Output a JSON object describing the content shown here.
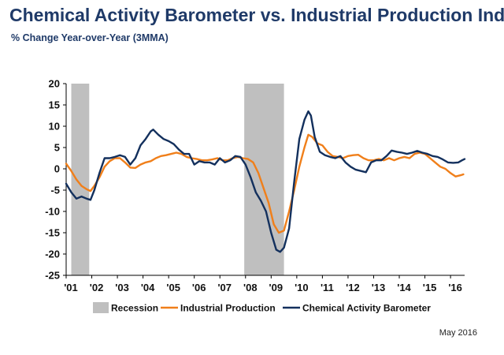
{
  "title": "Chemical Activity Barometer vs. Industrial Production Index",
  "subtitle": "% Change Year-over-Year (3MMA)",
  "footnote": "May 2016",
  "colors": {
    "recession": "#bfbfbf",
    "industrial_production": "#f07f1a",
    "cab": "#13305d"
  },
  "chart_data": {
    "type": "line",
    "title": "Chemical Activity Barometer vs. Industrial Production Index",
    "subtitle": "% Change Year-over-Year (3MMA)",
    "xlabel": "",
    "ylabel": "",
    "ylim": [
      -25,
      20
    ],
    "xlim": [
      2001.0,
      2016.55
    ],
    "yticks": [
      -25,
      -20,
      -15,
      -10,
      -5,
      0,
      5,
      10,
      15,
      20
    ],
    "xtick_labels": [
      "'01",
      "'02",
      "'03",
      "'04",
      "'05",
      "'06",
      "'07",
      "'08",
      "'09",
      "'10",
      "'11",
      "'12",
      "'13",
      "'14",
      "'15",
      "'16"
    ],
    "grid": false,
    "legend_position": "bottom",
    "legend": [
      "Recession",
      "Industrial Production",
      "Chemical Activity Barometer"
    ],
    "recessions": [
      [
        2001.2,
        2001.9
      ],
      [
        2007.95,
        2009.5
      ]
    ],
    "series": [
      {
        "name": "Industrial Production",
        "points": [
          [
            2001.0,
            1.2
          ],
          [
            2001.2,
            -0.5
          ],
          [
            2001.4,
            -2.5
          ],
          [
            2001.6,
            -4.0
          ],
          [
            2001.8,
            -4.8
          ],
          [
            2001.95,
            -5.2
          ],
          [
            2002.1,
            -4.0
          ],
          [
            2002.3,
            -2.0
          ],
          [
            2002.5,
            0.5
          ],
          [
            2002.7,
            1.8
          ],
          [
            2002.9,
            2.5
          ],
          [
            2003.1,
            2.5
          ],
          [
            2003.3,
            1.5
          ],
          [
            2003.5,
            0.3
          ],
          [
            2003.7,
            0.2
          ],
          [
            2003.9,
            1.0
          ],
          [
            2004.1,
            1.5
          ],
          [
            2004.3,
            1.8
          ],
          [
            2004.5,
            2.5
          ],
          [
            2004.7,
            3.0
          ],
          [
            2004.9,
            3.2
          ],
          [
            2005.1,
            3.5
          ],
          [
            2005.3,
            3.8
          ],
          [
            2005.5,
            3.5
          ],
          [
            2005.7,
            2.8
          ],
          [
            2005.9,
            2.5
          ],
          [
            2006.1,
            2.3
          ],
          [
            2006.3,
            2.0
          ],
          [
            2006.5,
            2.0
          ],
          [
            2006.7,
            2.2
          ],
          [
            2006.9,
            2.5
          ],
          [
            2007.1,
            2.0
          ],
          [
            2007.3,
            2.0
          ],
          [
            2007.5,
            2.5
          ],
          [
            2007.7,
            2.8
          ],
          [
            2007.9,
            2.5
          ],
          [
            2008.1,
            2.3
          ],
          [
            2008.3,
            1.5
          ],
          [
            2008.5,
            -1.0
          ],
          [
            2008.7,
            -4.5
          ],
          [
            2008.9,
            -8.0
          ],
          [
            2009.1,
            -13.0
          ],
          [
            2009.3,
            -15.0
          ],
          [
            2009.5,
            -14.5
          ],
          [
            2009.7,
            -10.0
          ],
          [
            2009.9,
            -5.0
          ],
          [
            2010.1,
            0.5
          ],
          [
            2010.3,
            5.0
          ],
          [
            2010.45,
            8.0
          ],
          [
            2010.6,
            7.5
          ],
          [
            2010.8,
            6.0
          ],
          [
            2011.0,
            5.5
          ],
          [
            2011.2,
            4.0
          ],
          [
            2011.4,
            3.0
          ],
          [
            2011.6,
            2.8
          ],
          [
            2011.8,
            2.5
          ],
          [
            2012.0,
            3.0
          ],
          [
            2012.2,
            3.2
          ],
          [
            2012.4,
            3.3
          ],
          [
            2012.6,
            2.5
          ],
          [
            2012.8,
            2.0
          ],
          [
            2013.0,
            2.0
          ],
          [
            2013.2,
            2.3
          ],
          [
            2013.4,
            2.0
          ],
          [
            2013.6,
            2.5
          ],
          [
            2013.8,
            2.0
          ],
          [
            2014.0,
            2.5
          ],
          [
            2014.2,
            2.8
          ],
          [
            2014.4,
            2.5
          ],
          [
            2014.6,
            3.5
          ],
          [
            2014.8,
            3.8
          ],
          [
            2015.0,
            3.5
          ],
          [
            2015.2,
            2.5
          ],
          [
            2015.4,
            1.5
          ],
          [
            2015.6,
            0.5
          ],
          [
            2015.8,
            0.0
          ],
          [
            2016.0,
            -1.0
          ],
          [
            2016.2,
            -1.8
          ],
          [
            2016.4,
            -1.5
          ],
          [
            2016.5,
            -1.3
          ]
        ]
      },
      {
        "name": "Chemical Activity Barometer",
        "points": [
          [
            2001.0,
            -3.5
          ],
          [
            2001.2,
            -5.5
          ],
          [
            2001.4,
            -7.0
          ],
          [
            2001.6,
            -6.5
          ],
          [
            2001.8,
            -7.0
          ],
          [
            2001.95,
            -7.3
          ],
          [
            2002.1,
            -5.0
          ],
          [
            2002.3,
            -1.0
          ],
          [
            2002.5,
            2.5
          ],
          [
            2002.7,
            2.5
          ],
          [
            2002.9,
            2.8
          ],
          [
            2003.1,
            3.2
          ],
          [
            2003.3,
            2.8
          ],
          [
            2003.5,
            1.0
          ],
          [
            2003.7,
            2.5
          ],
          [
            2003.9,
            5.5
          ],
          [
            2004.1,
            7.0
          ],
          [
            2004.3,
            8.8
          ],
          [
            2004.4,
            9.2
          ],
          [
            2004.6,
            8.0
          ],
          [
            2004.8,
            7.0
          ],
          [
            2005.0,
            6.5
          ],
          [
            2005.2,
            5.8
          ],
          [
            2005.4,
            4.5
          ],
          [
            2005.6,
            3.5
          ],
          [
            2005.8,
            3.5
          ],
          [
            2006.0,
            1.0
          ],
          [
            2006.2,
            1.8
          ],
          [
            2006.4,
            1.5
          ],
          [
            2006.6,
            1.5
          ],
          [
            2006.8,
            1.0
          ],
          [
            2007.0,
            2.5
          ],
          [
            2007.2,
            1.5
          ],
          [
            2007.4,
            2.0
          ],
          [
            2007.6,
            3.0
          ],
          [
            2007.8,
            2.8
          ],
          [
            2008.0,
            1.0
          ],
          [
            2008.2,
            -2.0
          ],
          [
            2008.4,
            -5.5
          ],
          [
            2008.6,
            -7.5
          ],
          [
            2008.8,
            -10.0
          ],
          [
            2009.0,
            -15.0
          ],
          [
            2009.2,
            -19.0
          ],
          [
            2009.35,
            -19.5
          ],
          [
            2009.5,
            -18.5
          ],
          [
            2009.7,
            -14.0
          ],
          [
            2009.9,
            -3.0
          ],
          [
            2010.1,
            7.0
          ],
          [
            2010.3,
            11.5
          ],
          [
            2010.45,
            13.5
          ],
          [
            2010.55,
            12.5
          ],
          [
            2010.7,
            7.5
          ],
          [
            2010.9,
            4.0
          ],
          [
            2011.1,
            3.2
          ],
          [
            2011.3,
            2.8
          ],
          [
            2011.5,
            2.5
          ],
          [
            2011.7,
            3.0
          ],
          [
            2011.9,
            1.5
          ],
          [
            2012.1,
            0.5
          ],
          [
            2012.3,
            -0.2
          ],
          [
            2012.5,
            -0.5
          ],
          [
            2012.7,
            -0.8
          ],
          [
            2012.9,
            1.5
          ],
          [
            2013.1,
            2.0
          ],
          [
            2013.3,
            2.0
          ],
          [
            2013.5,
            3.0
          ],
          [
            2013.7,
            4.3
          ],
          [
            2013.9,
            4.0
          ],
          [
            2014.1,
            3.8
          ],
          [
            2014.3,
            3.5
          ],
          [
            2014.5,
            3.8
          ],
          [
            2014.7,
            4.2
          ],
          [
            2014.9,
            3.8
          ],
          [
            2015.1,
            3.5
          ],
          [
            2015.3,
            3.0
          ],
          [
            2015.5,
            2.8
          ],
          [
            2015.7,
            2.2
          ],
          [
            2015.9,
            1.5
          ],
          [
            2016.1,
            1.4
          ],
          [
            2016.3,
            1.5
          ],
          [
            2016.45,
            2.0
          ],
          [
            2016.55,
            2.3
          ]
        ]
      }
    ]
  }
}
